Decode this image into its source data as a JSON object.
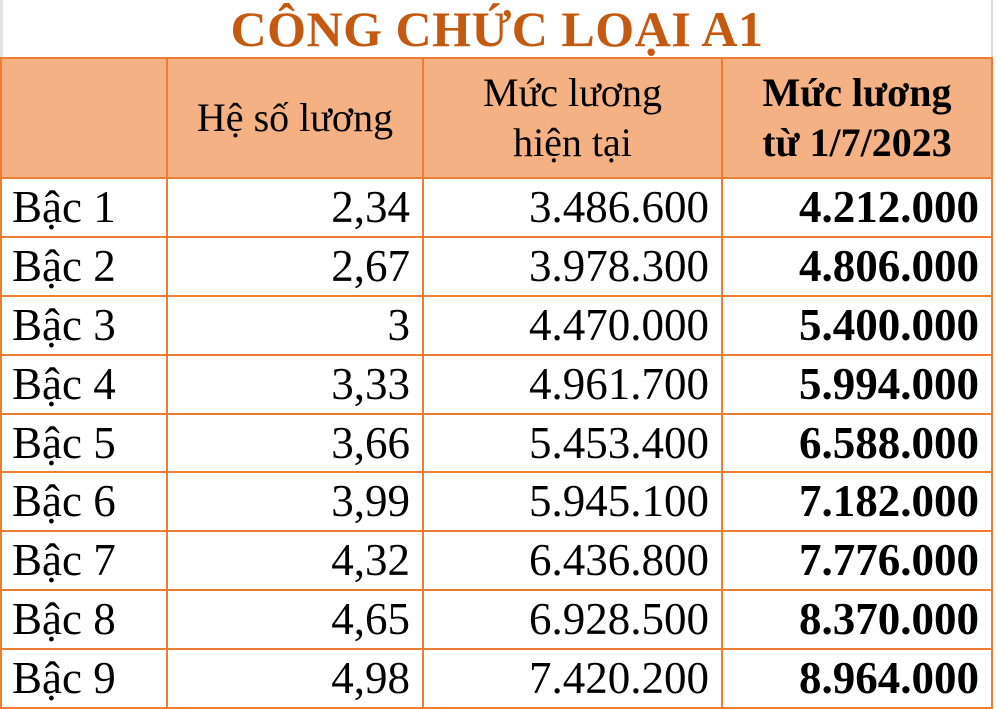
{
  "title": "CÔNG CHỨC LOẠI A1",
  "colors": {
    "title_text": "#c45911",
    "header_background": "#f4b183",
    "table_border": "#ed7d31",
    "body_text": "#000000",
    "page_background": "#ffffff"
  },
  "table": {
    "headers": {
      "corner": "",
      "coefficient": "Hệ số lương",
      "current_salary": "Mức lương\nhiện tại",
      "salary_from_2023": "Mức lương\ntừ 1/7/2023"
    },
    "rows": [
      {
        "label": "Bậc 1",
        "coefficient": "2,34",
        "current_salary": "3.486.600",
        "salary_from_2023": "4.212.000"
      },
      {
        "label": "Bậc 2",
        "coefficient": "2,67",
        "current_salary": "3.978.300",
        "salary_from_2023": "4.806.000"
      },
      {
        "label": "Bậc 3",
        "coefficient": "3",
        "current_salary": "4.470.000",
        "salary_from_2023": "5.400.000"
      },
      {
        "label": "Bậc 4",
        "coefficient": "3,33",
        "current_salary": "4.961.700",
        "salary_from_2023": "5.994.000"
      },
      {
        "label": "Bậc 5",
        "coefficient": "3,66",
        "current_salary": "5.453.400",
        "salary_from_2023": "6.588.000"
      },
      {
        "label": "Bậc 6",
        "coefficient": "3,99",
        "current_salary": "5.945.100",
        "salary_from_2023": "7.182.000"
      },
      {
        "label": "Bậc 7",
        "coefficient": "4,32",
        "current_salary": "6.436.800",
        "salary_from_2023": "7.776.000"
      },
      {
        "label": "Bậc 8",
        "coefficient": "4,65",
        "current_salary": "6.928.500",
        "salary_from_2023": "8.370.000"
      },
      {
        "label": "Bậc 9",
        "coefficient": "4,98",
        "current_salary": "7.420.200",
        "salary_from_2023": "8.964.000"
      }
    ]
  },
  "chart_data": {
    "type": "table",
    "title": "CÔNG CHỨC LOẠI A1",
    "columns": [
      "",
      "Hệ số lương",
      "Mức lương hiện tại",
      "Mức lương từ 1/7/2023"
    ],
    "rows": [
      [
        "Bậc 1",
        "2,34",
        "3.486.600",
        "4.212.000"
      ],
      [
        "Bậc 2",
        "2,67",
        "3.978.300",
        "4.806.000"
      ],
      [
        "Bậc 3",
        "3",
        "4.470.000",
        "5.400.000"
      ],
      [
        "Bậc 4",
        "3,33",
        "4.961.700",
        "5.994.000"
      ],
      [
        "Bậc 5",
        "3,66",
        "5.453.400",
        "6.588.000"
      ],
      [
        "Bậc 6",
        "3,99",
        "5.945.100",
        "7.182.000"
      ],
      [
        "Bậc 7",
        "4,32",
        "6.436.800",
        "7.776.000"
      ],
      [
        "Bậc 8",
        "4,65",
        "6.928.500",
        "8.370.000"
      ],
      [
        "Bậc 9",
        "4,98",
        "7.420.200",
        "8.964.000"
      ]
    ]
  }
}
